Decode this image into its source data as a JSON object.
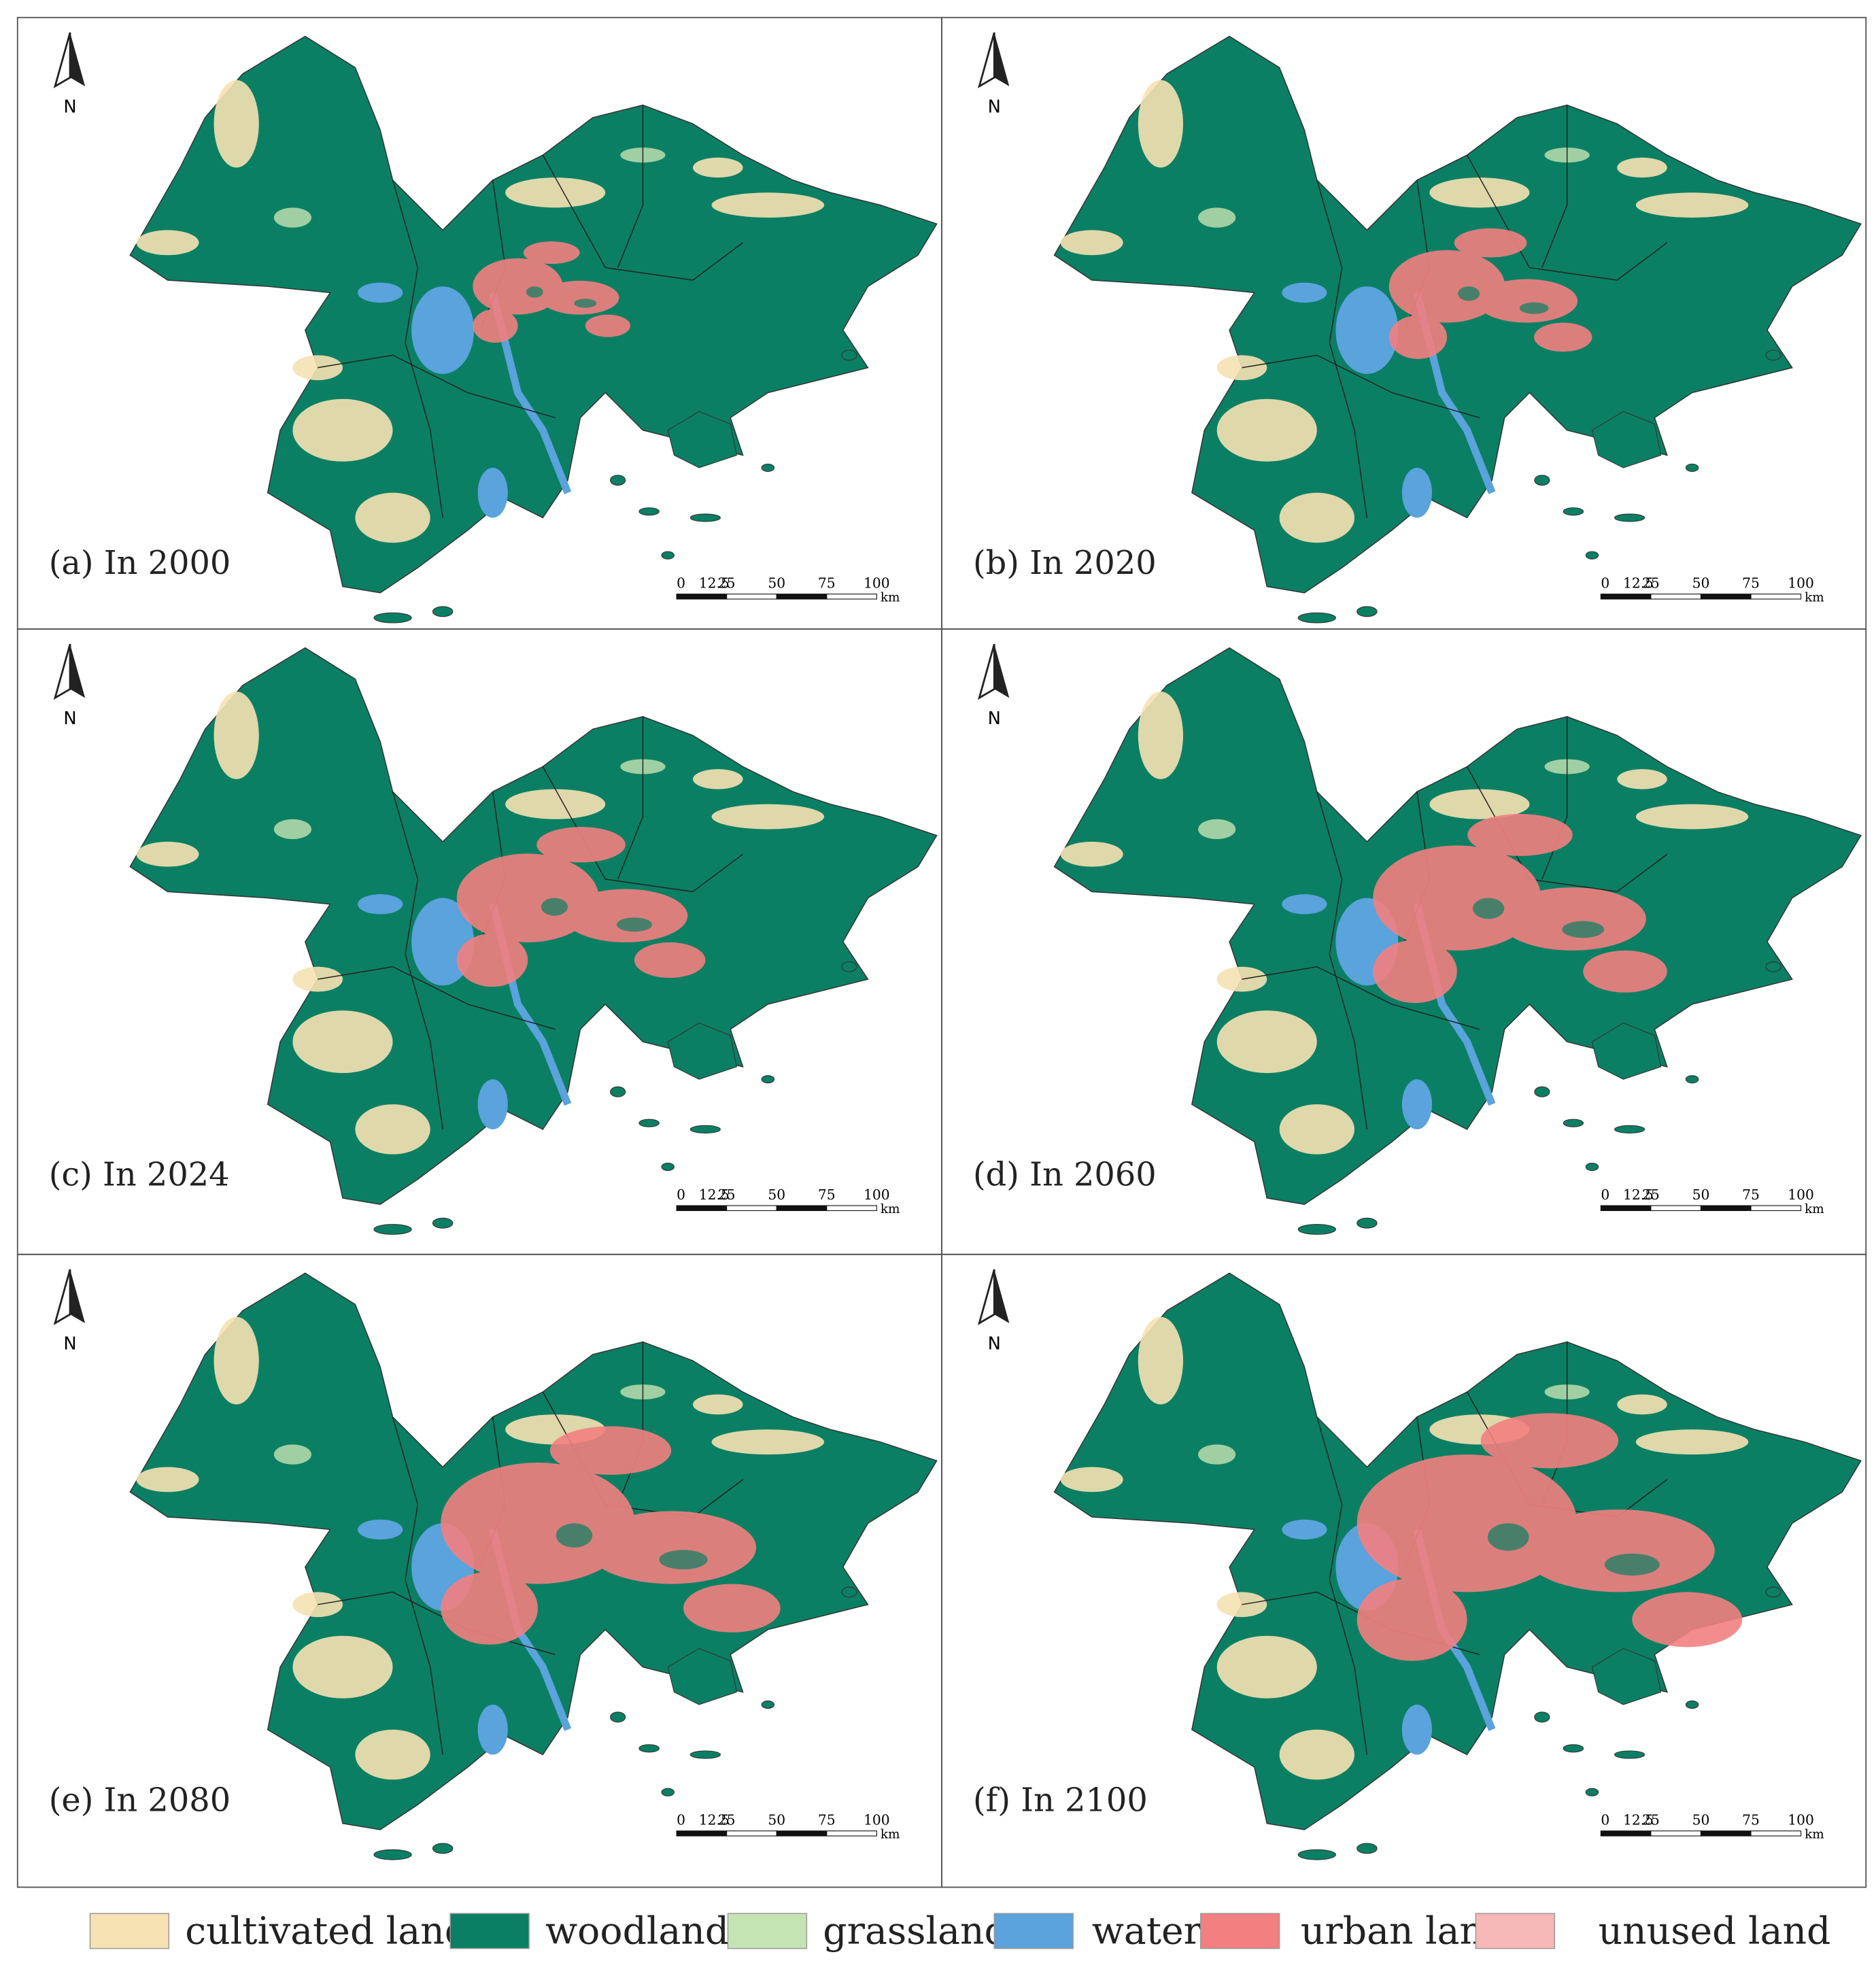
{
  "panels": [
    {
      "label": "(a) In 2000"
    },
    {
      "label": "(b)  In 2020"
    },
    {
      "label": "(c)  In 2024"
    },
    {
      "label": "(d)  In 2060"
    },
    {
      "label": "(e)   In 2080"
    },
    {
      "label": "(f)  In 2100"
    }
  ],
  "north_label": "N",
  "scale_labels": [
    "0",
    "12.5",
    "25",
    "50",
    "75",
    "100"
  ],
  "scale_unit": "km",
  "legend": [
    {
      "name": "cultivated land",
      "color": "#f6e2b3"
    },
    {
      "name": "woodland",
      "color": "#0b7f63"
    },
    {
      "name": "grassland",
      "color": "#c5e4b3"
    },
    {
      "name": "waters",
      "color": "#5aa3dd"
    },
    {
      "name": "urban land",
      "color": "#f28080"
    },
    {
      "name": "unused land",
      "color": "#f7b8b8"
    }
  ]
}
